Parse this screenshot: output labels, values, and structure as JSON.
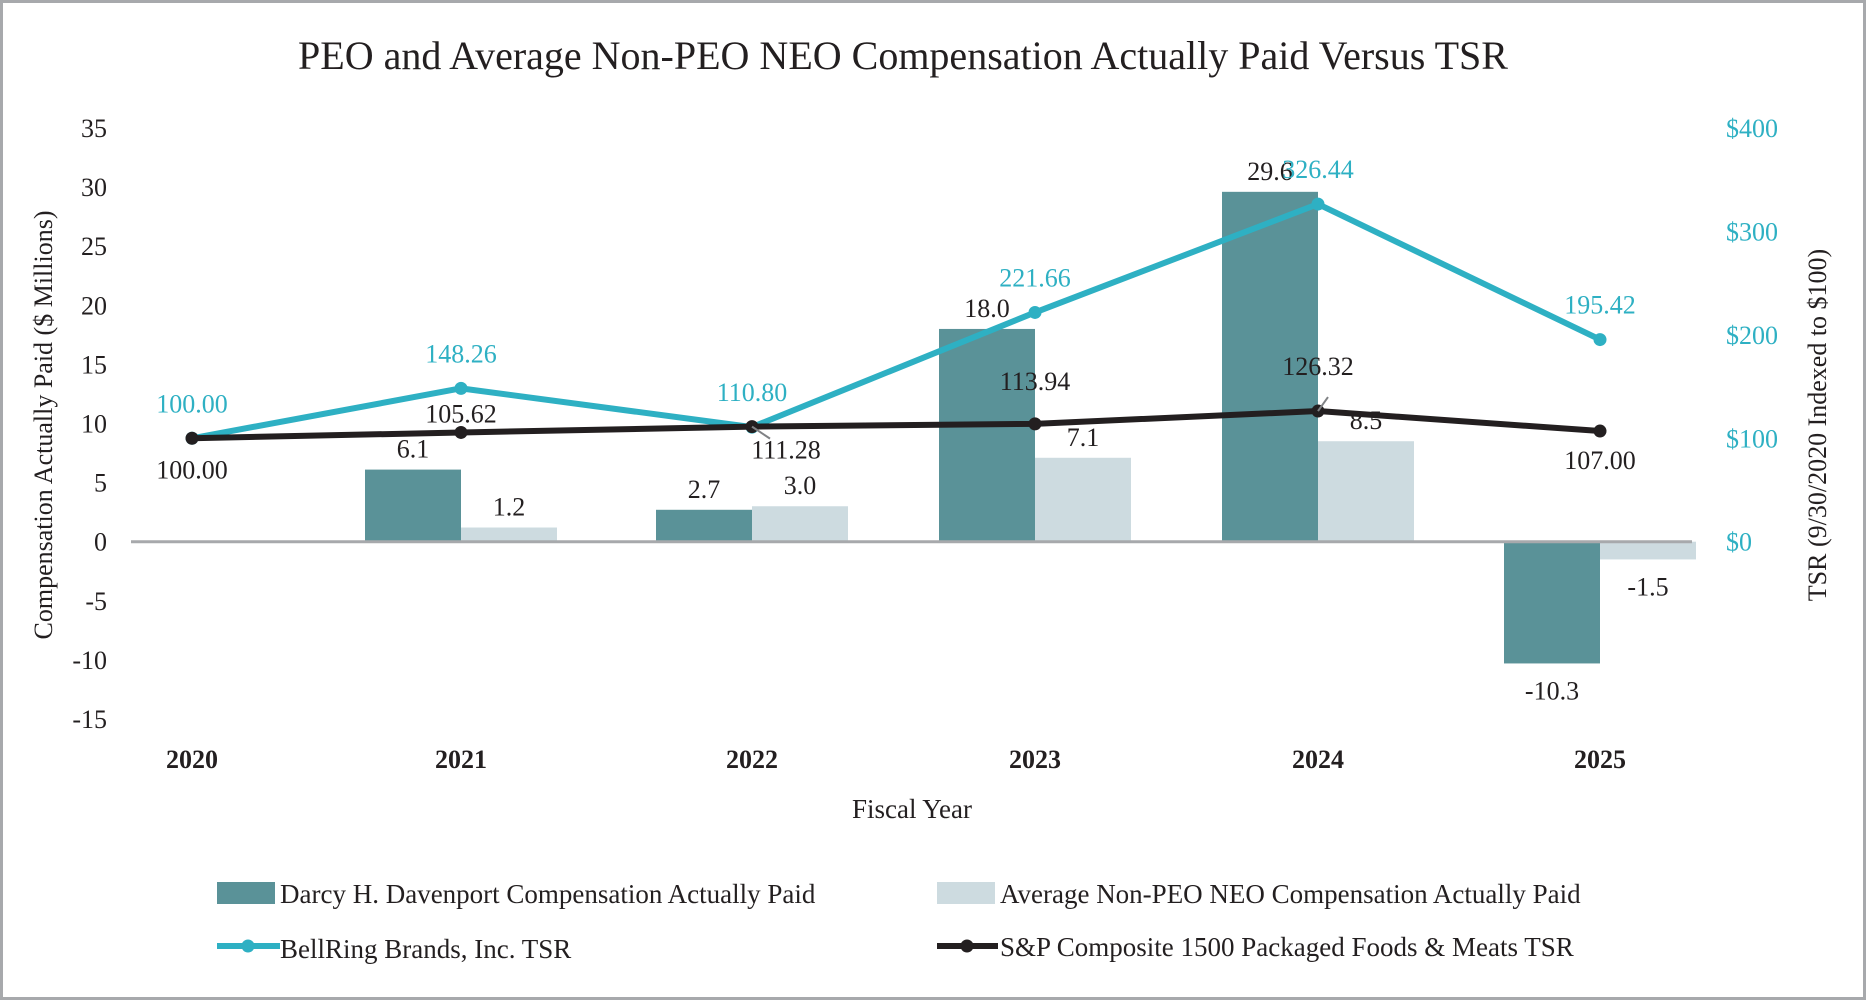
{
  "chart_data": {
    "type": "bar",
    "title": "PEO and Average Non-PEO NEO Compensation Actually Paid Versus TSR",
    "xlabel": "Fiscal Year",
    "ylabel": "Compensation Actually Paid ($ Millions)",
    "y2label": "TSR (9/30/2020 Indexed to $100)",
    "ylim": [
      -15,
      35
    ],
    "yticks": [
      "35",
      "30",
      "25",
      "20",
      "15",
      "10",
      "5",
      "0",
      "-5",
      "-10",
      "-15"
    ],
    "ytick_values": [
      35,
      30,
      25,
      20,
      15,
      10,
      5,
      0,
      -5,
      -10,
      -15
    ],
    "y2lim": [
      0,
      400
    ],
    "y2ticks": [
      "$400",
      "$300",
      "$200",
      "$100",
      "$0"
    ],
    "y2tick_values": [
      400,
      300,
      200,
      100,
      0
    ],
    "categories": [
      "2020",
      "2021",
      "2022",
      "2023",
      "2024",
      "2025"
    ],
    "bar_series": [
      {
        "name": "Darcy H. Davenport Compensation Actually Paid",
        "color": "#5a9298",
        "values": [
          null,
          6.1,
          2.7,
          18.0,
          29.6,
          -10.3
        ],
        "labels": [
          "",
          "6.1",
          "2.7",
          "18.0",
          "29.6",
          "-10.3"
        ]
      },
      {
        "name": "Average Non-PEO NEO Compensation Actually Paid",
        "color": "#cddbe0",
        "values": [
          null,
          1.2,
          3.0,
          7.1,
          8.5,
          -1.5
        ],
        "labels": [
          "",
          "1.2",
          "3.0",
          "7.1",
          "8.5",
          "-1.5"
        ]
      }
    ],
    "line_series": [
      {
        "name": "BellRing Brands, Inc. TSR",
        "color": "#2eb0c3",
        "axis": "right",
        "values": [
          100.0,
          148.26,
          110.8,
          221.66,
          326.44,
          195.42
        ],
        "labels": [
          "100.00",
          "148.26",
          "110.80",
          "221.66",
          "326.44",
          "195.42"
        ]
      },
      {
        "name": "S&P Composite 1500 Packaged Foods & Meats TSR",
        "color": "#231f20",
        "axis": "right",
        "values": [
          100.0,
          105.62,
          111.28,
          113.94,
          126.32,
          107.0
        ],
        "labels": [
          "100.00",
          "105.62",
          "111.28",
          "113.94",
          "126.32",
          "107.00"
        ]
      }
    ],
    "grid": false,
    "legend_position": "bottom"
  },
  "colors": {
    "frame": "#a7a9ac",
    "axis_zero": "#a7a9ac",
    "right_axis_text": "#2eb0c3",
    "text": "#231f20"
  }
}
